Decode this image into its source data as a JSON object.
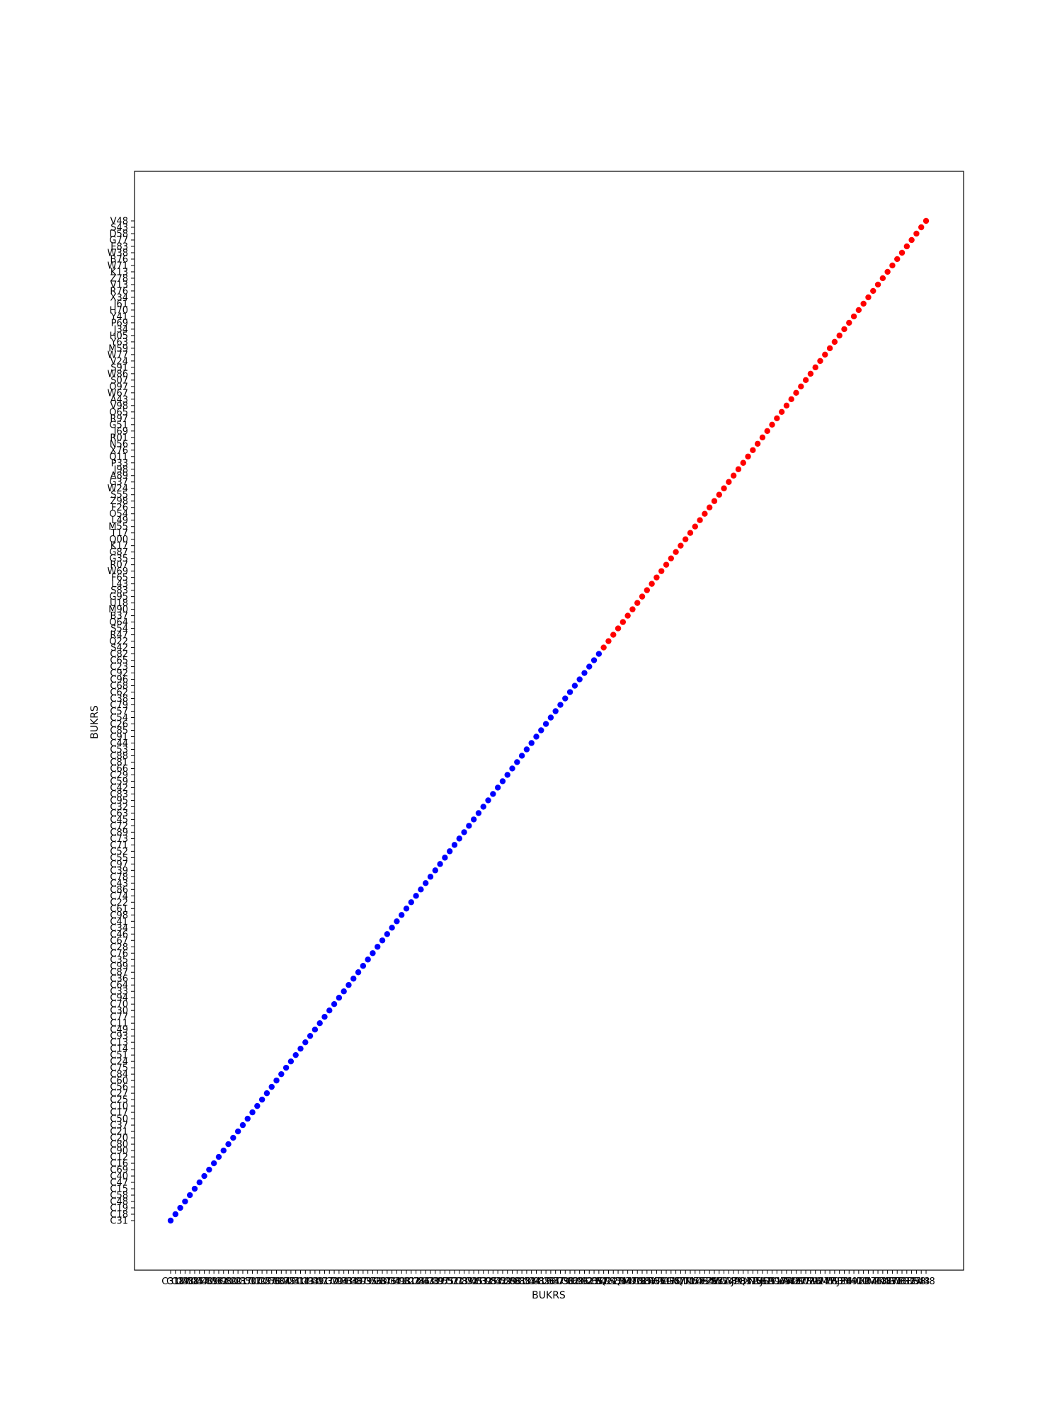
{
  "chart_data": {
    "type": "scatter",
    "xlabel": "BUKRS",
    "ylabel": "BUKRS",
    "grid": false,
    "legend": "none",
    "point_color_default": "#0000ff",
    "point_color_highlight": "#ff0000",
    "categories": [
      "C31",
      "C18",
      "C19",
      "C48",
      "C58",
      "C15",
      "C47",
      "C40",
      "C69",
      "C16",
      "C12",
      "C90",
      "C80",
      "C20",
      "C21",
      "C37",
      "C50",
      "C17",
      "C10",
      "C25",
      "C27",
      "C56",
      "C60",
      "C84",
      "C75",
      "C24",
      "C51",
      "C14",
      "C13",
      "C93",
      "C49",
      "C11",
      "C77",
      "C30",
      "C70",
      "C94",
      "C33",
      "C64",
      "C36",
      "C87",
      "C99",
      "C35",
      "C76",
      "C28",
      "C67",
      "C46",
      "C34",
      "C41",
      "C98",
      "C61",
      "C22",
      "C74",
      "C86",
      "C43",
      "C78",
      "C39",
      "C97",
      "C55",
      "C52",
      "C71",
      "C73",
      "C89",
      "C72",
      "C45",
      "C63",
      "C32",
      "C95",
      "C83",
      "C42",
      "C59",
      "C29",
      "C66",
      "C81",
      "C88",
      "C53",
      "C44",
      "C91",
      "C85",
      "C26",
      "C54",
      "C57",
      "C79",
      "C38",
      "C62",
      "C68",
      "C96",
      "C92",
      "C23",
      "C65",
      "C82",
      "S42",
      "Q22",
      "R47",
      "S54",
      "Q64",
      "B37",
      "M90",
      "U18",
      "G95",
      "S83",
      "L43",
      "F65",
      "W69",
      "R07",
      "G35",
      "G87",
      "K17",
      "Q00",
      "T17",
      "M55",
      "L49",
      "O54",
      "F26",
      "Z98",
      "S55",
      "W24",
      "G37",
      "A89",
      "J98",
      "P33",
      "Q11",
      "X76",
      "N56",
      "R01",
      "J69",
      "G51",
      "R97",
      "O65",
      "V98",
      "A43",
      "W67",
      "O97",
      "S07",
      "W86",
      "S91",
      "V24",
      "W77",
      "M59",
      "Y63",
      "H05",
      "J34",
      "P69",
      "Y41",
      "H70",
      "I61",
      "X34",
      "R76",
      "V13",
      "Z78",
      "K13",
      "W71",
      "B76",
      "W38",
      "E83",
      "G77",
      "D58",
      "S43",
      "V48"
    ],
    "x": [
      "C31",
      "C18",
      "C19",
      "C48",
      "C58",
      "C15",
      "C47",
      "C40",
      "C69",
      "C16",
      "C12",
      "C90",
      "C80",
      "C20",
      "C21",
      "C37",
      "C50",
      "C17",
      "C10",
      "C25",
      "C27",
      "C56",
      "C60",
      "C84",
      "C75",
      "C24",
      "C51",
      "C14",
      "C13",
      "C93",
      "C49",
      "C11",
      "C77",
      "C30",
      "C70",
      "C94",
      "C33",
      "C64",
      "C36",
      "C87",
      "C99",
      "C35",
      "C76",
      "C28",
      "C67",
      "C46",
      "C34",
      "C41",
      "C98",
      "C61",
      "C22",
      "C74",
      "C86",
      "C43",
      "C78",
      "C39",
      "C97",
      "C55",
      "C52",
      "C71",
      "C73",
      "C89",
      "C72",
      "C45",
      "C63",
      "C32",
      "C95",
      "C83",
      "C42",
      "C59",
      "C29",
      "C66",
      "C81",
      "C88",
      "C53",
      "C44",
      "C91",
      "C85",
      "C26",
      "C54",
      "C57",
      "C79",
      "C38",
      "C62",
      "C68",
      "C96",
      "C92",
      "C23",
      "C65",
      "C82",
      "S42",
      "Q22",
      "R47",
      "S54",
      "Q64",
      "B37",
      "M90",
      "U18",
      "G95",
      "S83",
      "L43",
      "F65",
      "W69",
      "R07",
      "G35",
      "G87",
      "K17",
      "Q00",
      "T17",
      "M55",
      "L49",
      "O54",
      "F26",
      "Z98",
      "S55",
      "W24",
      "G37",
      "A89",
      "J98",
      "P33",
      "Q11",
      "X76",
      "N56",
      "R01",
      "J69",
      "G51",
      "R97",
      "O65",
      "V98",
      "A43",
      "W67",
      "O97",
      "S07",
      "W86",
      "S91",
      "V24",
      "W77",
      "M59",
      "Y63",
      "H05",
      "J34",
      "P69",
      "Y41",
      "H70",
      "I61",
      "X34",
      "R76",
      "V13",
      "Z78",
      "K13",
      "W71",
      "B76",
      "W38",
      "E83",
      "G77",
      "D58",
      "S43",
      "V48"
    ],
    "y": [
      "C31",
      "C18",
      "C19",
      "C48",
      "C58",
      "C15",
      "C47",
      "C40",
      "C69",
      "C16",
      "C12",
      "C90",
      "C80",
      "C20",
      "C21",
      "C37",
      "C50",
      "C17",
      "C10",
      "C25",
      "C27",
      "C56",
      "C60",
      "C84",
      "C75",
      "C24",
      "C51",
      "C14",
      "C13",
      "C93",
      "C49",
      "C11",
      "C77",
      "C30",
      "C70",
      "C94",
      "C33",
      "C64",
      "C36",
      "C87",
      "C99",
      "C35",
      "C76",
      "C28",
      "C67",
      "C46",
      "C34",
      "C41",
      "C98",
      "C61",
      "C22",
      "C74",
      "C86",
      "C43",
      "C78",
      "C39",
      "C97",
      "C55",
      "C52",
      "C71",
      "C73",
      "C89",
      "C72",
      "C45",
      "C63",
      "C32",
      "C95",
      "C83",
      "C42",
      "C59",
      "C29",
      "C66",
      "C81",
      "C88",
      "C53",
      "C44",
      "C91",
      "C85",
      "C26",
      "C54",
      "C57",
      "C79",
      "C38",
      "C62",
      "C68",
      "C96",
      "C92",
      "C23",
      "C65",
      "C82",
      "S42",
      "Q22",
      "R47",
      "S54",
      "Q64",
      "B37",
      "M90",
      "U18",
      "G95",
      "S83",
      "L43",
      "F65",
      "W69",
      "R07",
      "G35",
      "G87",
      "K17",
      "Q00",
      "T17",
      "M55",
      "L49",
      "O54",
      "F26",
      "Z98",
      "S55",
      "W24",
      "G37",
      "A89",
      "J98",
      "P33",
      "Q11",
      "X76",
      "N56",
      "R01",
      "J69",
      "G51",
      "R97",
      "O65",
      "V98",
      "A43",
      "W67",
      "O97",
      "S07",
      "W86",
      "S91",
      "V24",
      "W77",
      "M59",
      "Y63",
      "H05",
      "J34",
      "P69",
      "Y41",
      "H70",
      "I61",
      "X34",
      "R76",
      "V13",
      "Z78",
      "K13",
      "W71",
      "B76",
      "W38",
      "E83",
      "G77",
      "D58",
      "S43",
      "V48"
    ],
    "highlight_from_index": 90
  }
}
